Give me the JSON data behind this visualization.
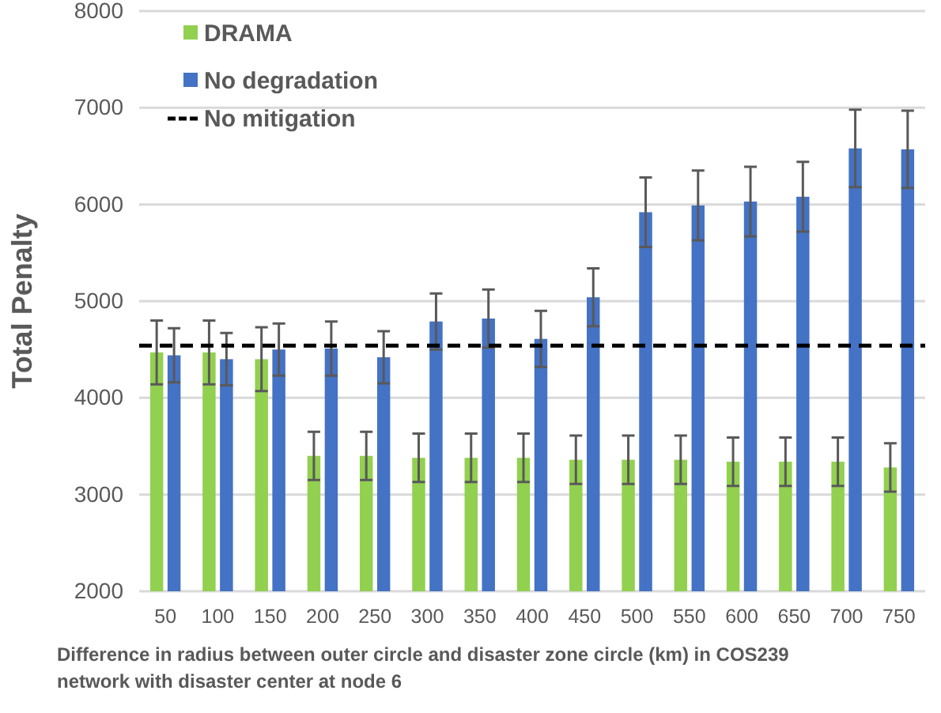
{
  "chart_data": {
    "type": "bar",
    "xlabel": "Difference in radius between outer circle and disaster zone circle (km) in COS239 network with disaster center at node 6",
    "ylabel": "Total Penalty",
    "categories": [
      "50",
      "100",
      "150",
      "200",
      "250",
      "300",
      "350",
      "400",
      "450",
      "500",
      "550",
      "600",
      "650",
      "700",
      "750"
    ],
    "series": [
      {
        "name": "DRAMA",
        "color": "#92d050",
        "values": [
          4470,
          4470,
          4400,
          3400,
          3400,
          3380,
          3380,
          3380,
          3360,
          3360,
          3360,
          3340,
          3340,
          3340,
          3280
        ],
        "errors": [
          330,
          330,
          330,
          250,
          250,
          250,
          250,
          250,
          250,
          250,
          250,
          250,
          250,
          250,
          250
        ]
      },
      {
        "name": "No degradation",
        "color": "#4472c4",
        "values": [
          4440,
          4400,
          4500,
          4510,
          4420,
          4790,
          4820,
          4610,
          5040,
          5920,
          5990,
          6030,
          6080,
          6580,
          6570
        ],
        "errors": [
          280,
          270,
          270,
          280,
          270,
          290,
          300,
          290,
          300,
          360,
          360,
          360,
          360,
          400,
          400
        ]
      }
    ],
    "ref_lines": [
      {
        "axis": "y",
        "value": 4540,
        "label": "No mitigation",
        "color": "#000000",
        "line_style": "dashed"
      }
    ],
    "ylim": [
      2000,
      8000
    ],
    "yticks": [
      2000,
      3000,
      4000,
      5000,
      6000,
      7000,
      8000
    ],
    "grid": "y",
    "legend": "top left"
  }
}
